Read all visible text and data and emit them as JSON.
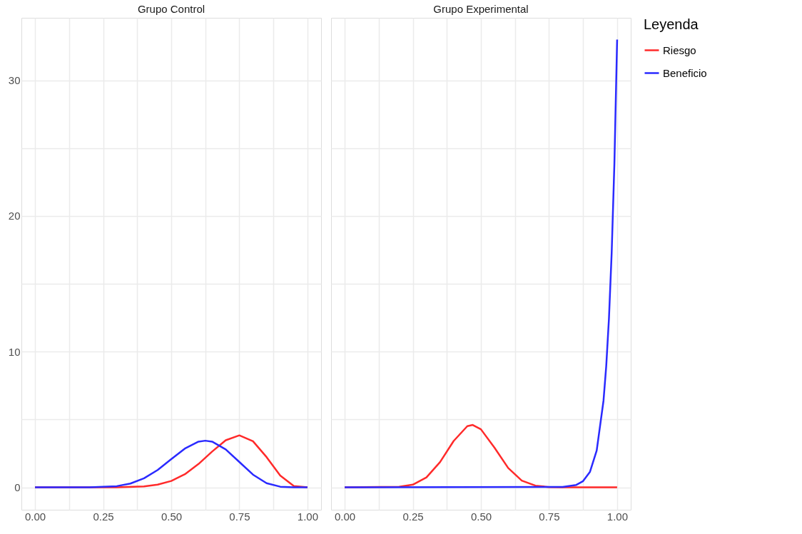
{
  "chart_data": [
    {
      "type": "line",
      "title": "Grupo  Control",
      "xlim": [
        -0.05,
        1.05
      ],
      "ylim": [
        -1.65,
        34.6
      ],
      "xticks": [
        {
          "value": 0,
          "label": "0.00"
        },
        {
          "value": 0.125,
          "label": null
        },
        {
          "value": 0.25,
          "label": "0.25"
        },
        {
          "value": 0.375,
          "label": null
        },
        {
          "value": 0.5,
          "label": "0.50"
        },
        {
          "value": 0.625,
          "label": null
        },
        {
          "value": 0.75,
          "label": "0.75"
        },
        {
          "value": 0.875,
          "label": null
        },
        {
          "value": 1,
          "label": "1.00"
        }
      ],
      "yticks": [
        0,
        {
          "value": 5,
          "label": null
        },
        10,
        {
          "value": 15,
          "label": null
        },
        20,
        {
          "value": 25,
          "label": null
        },
        30
      ],
      "grid": true,
      "series": [
        {
          "color": "#ff2a2a",
          "x": [
            0,
            0.2,
            0.3,
            0.4,
            0.45,
            0.5,
            0.55,
            0.6,
            0.65,
            0.7,
            0.75,
            0.8,
            0.85,
            0.9,
            0.95,
            1
          ],
          "values": [
            0,
            0,
            0,
            0.07,
            0.2,
            0.47,
            0.97,
            1.72,
            2.64,
            3.47,
            3.83,
            3.4,
            2.23,
            0.87,
            0.1,
            0
          ]
        },
        {
          "color": "#2a2aff",
          "x": [
            0,
            0.2,
            0.3,
            0.35,
            0.4,
            0.45,
            0.5,
            0.55,
            0.6,
            0.625,
            0.65,
            0.7,
            0.75,
            0.8,
            0.85,
            0.9,
            0.95,
            1
          ],
          "values": [
            0,
            0,
            0.09,
            0.28,
            0.67,
            1.28,
            2.08,
            2.86,
            3.37,
            3.44,
            3.37,
            2.8,
            1.87,
            0.94,
            0.31,
            0.05,
            0,
            0
          ]
        }
      ]
    },
    {
      "type": "line",
      "title": "Grupo  Experimental",
      "xlim": [
        -0.05,
        1.05
      ],
      "ylim": [
        -1.65,
        34.6
      ],
      "xticks": [
        {
          "value": 0,
          "label": "0.00"
        },
        {
          "value": 0.125,
          "label": null
        },
        {
          "value": 0.25,
          "label": "0.25"
        },
        {
          "value": 0.375,
          "label": null
        },
        {
          "value": 0.5,
          "label": "0.50"
        },
        {
          "value": 0.625,
          "label": null
        },
        {
          "value": 0.75,
          "label": "0.75"
        },
        {
          "value": 0.875,
          "label": null
        },
        {
          "value": 1,
          "label": "1.00"
        }
      ],
      "yticks": [
        0,
        {
          "value": 5,
          "label": null
        },
        10,
        {
          "value": 15,
          "label": null
        },
        20,
        {
          "value": 25,
          "label": null
        },
        30
      ],
      "tick_labels": "x",
      "grid": true,
      "legend": "right",
      "legend_title": "Leyenda",
      "series": [
        {
          "name": "Riesgo",
          "color": "#ff2a2a",
          "x": [
            0,
            0.2,
            0.25,
            0.3,
            0.35,
            0.4,
            0.45,
            0.47,
            0.5,
            0.55,
            0.6,
            0.65,
            0.7,
            0.75,
            0.8,
            1
          ],
          "values": [
            0,
            0.04,
            0.2,
            0.73,
            1.86,
            3.42,
            4.51,
            4.6,
            4.28,
            2.92,
            1.43,
            0.5,
            0.13,
            0.02,
            0,
            0
          ]
        },
        {
          "name": "Beneficio",
          "color": "#2a2aff",
          "x": [
            0,
            0.8,
            0.85,
            0.875,
            0.9,
            0.925,
            0.95,
            0.96,
            0.97,
            0.98,
            0.99,
            1
          ],
          "values": [
            0,
            0.03,
            0.18,
            0.46,
            1.13,
            2.72,
            6.39,
            8.94,
            12.45,
            17.3,
            23.9,
            33
          ]
        }
      ]
    }
  ]
}
